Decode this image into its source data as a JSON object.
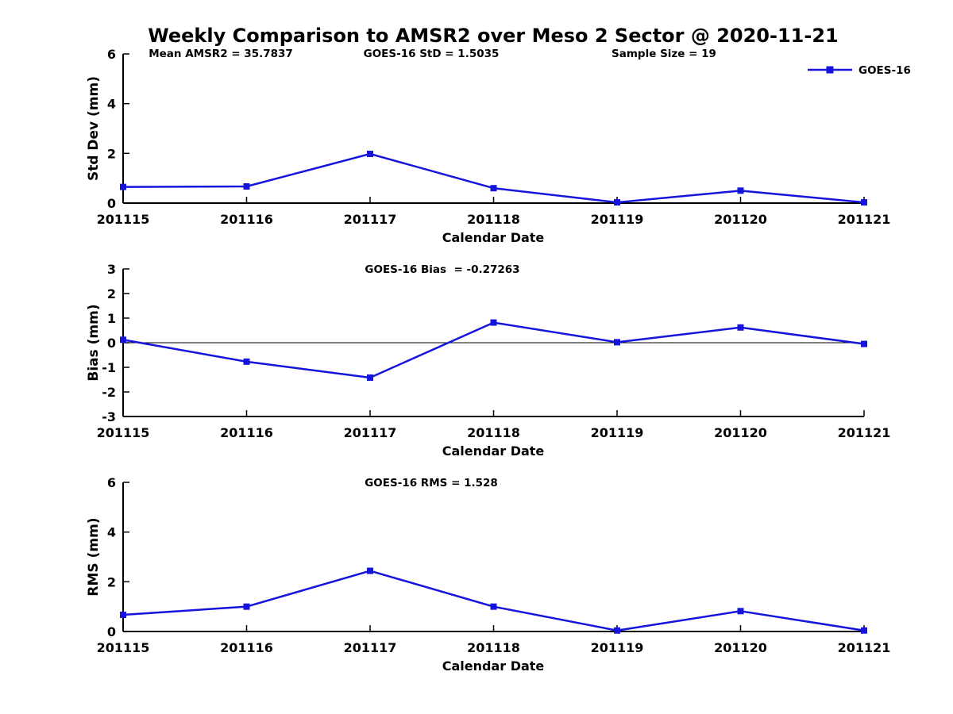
{
  "title": "Weekly Comparison to AMSR2 over Meso 2 Sector @ 2020-11-21",
  "colors": {
    "series": "#1414dc",
    "axis": "#000000",
    "text": "#000000",
    "background": "#ffffff"
  },
  "legend": {
    "label": "GOES-16",
    "position": "top-right"
  },
  "stats": {
    "mean_amsr2": 35.7837,
    "goes16_std": 1.5035,
    "sample_size": 19,
    "goes16_bias": -0.27263,
    "goes16_rms": 1.528
  },
  "chart_data": [
    {
      "type": "line",
      "ylabel": "Std Dev (mm)",
      "xlabel": "Calendar Date",
      "categories": [
        "201115",
        "201116",
        "201117",
        "201118",
        "201119",
        "201120",
        "201121"
      ],
      "series": [
        {
          "name": "GOES-16",
          "values": [
            0.65,
            0.67,
            1.98,
            0.6,
            0.03,
            0.5,
            0.03
          ]
        }
      ],
      "ylim": [
        0,
        6
      ],
      "yticks": [
        0,
        2,
        4,
        6
      ],
      "annotations": [
        "Mean AMSR2 = 35.7837",
        "GOES-16 StD = 1.5035",
        "Sample Size = 19"
      ],
      "zero_line": false,
      "grid": false,
      "legend_visible": true
    },
    {
      "type": "line",
      "ylabel": "Bias (mm)",
      "xlabel": "Calendar Date",
      "categories": [
        "201115",
        "201116",
        "201117",
        "201118",
        "201119",
        "201120",
        "201121"
      ],
      "series": [
        {
          "name": "GOES-16",
          "values": [
            0.12,
            -0.77,
            -1.42,
            0.82,
            0.02,
            0.62,
            -0.05
          ]
        }
      ],
      "ylim": [
        -3,
        3
      ],
      "yticks": [
        -3,
        -2,
        -1,
        0,
        1,
        2,
        3
      ],
      "annotations": [
        "GOES-16 Bias  = -0.27263"
      ],
      "zero_line": true,
      "grid": false,
      "legend_visible": false
    },
    {
      "type": "line",
      "ylabel": "RMS (mm)",
      "xlabel": "Calendar Date",
      "categories": [
        "201115",
        "201116",
        "201117",
        "201118",
        "201119",
        "201120",
        "201121"
      ],
      "series": [
        {
          "name": "GOES-16",
          "values": [
            0.67,
            1.0,
            2.44,
            1.0,
            0.04,
            0.82,
            0.04
          ]
        }
      ],
      "ylim": [
        0,
        6
      ],
      "yticks": [
        0,
        2,
        4,
        6
      ],
      "annotations": [
        "GOES-16 RMS = 1.528"
      ],
      "zero_line": false,
      "grid": false,
      "legend_visible": true
    }
  ]
}
